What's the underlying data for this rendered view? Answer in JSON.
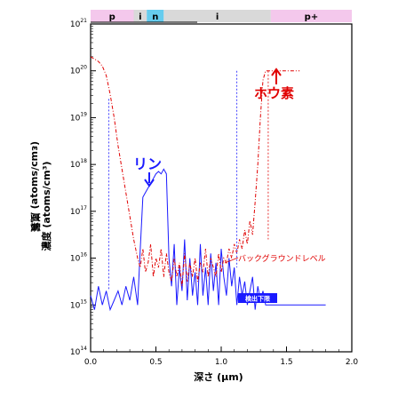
{
  "chart_data": {
    "type": "line",
    "xlabel": "深さ (μm)",
    "ylabel": "濃度 (atoms/cm³)",
    "ylabel_rotated_duplicate": "(ɛɯɔ/sɯoʇɐ) 嵐鬟",
    "x_ticks": [
      "0.0",
      "0.5",
      "1.0",
      "1.5",
      "2.0"
    ],
    "xlim": [
      0.0,
      2.0
    ],
    "y_tick_base": "10",
    "y_tick_exponents": [
      "21",
      "20",
      "19",
      "18",
      "17",
      "16",
      "15",
      "14"
    ],
    "ylim_log10": [
      14,
      21
    ],
    "region_bands": [
      {
        "label": "p",
        "from": 0.0,
        "to": 0.33,
        "color": "#f4c8ec"
      },
      {
        "label": "i",
        "from": 0.33,
        "to": 0.43,
        "color": "#d9d9d9"
      },
      {
        "label": "n",
        "from": 0.43,
        "to": 0.56,
        "color": "#66ccee"
      },
      {
        "label": "i",
        "from": 0.56,
        "to": 1.38,
        "color": "#d9d9d9"
      },
      {
        "label": "p+",
        "from": 1.38,
        "to": 2.0,
        "color": "#f4c8ec"
      }
    ],
    "series": [
      {
        "name": "リン",
        "color": "#1a1aff",
        "style": "solid",
        "x": [
          0.0,
          0.03,
          0.06,
          0.09,
          0.12,
          0.15,
          0.18,
          0.21,
          0.24,
          0.27,
          0.3,
          0.33,
          0.36,
          0.38,
          0.4,
          0.42,
          0.44,
          0.46,
          0.48,
          0.5,
          0.52,
          0.54,
          0.56,
          0.58,
          0.6,
          0.62,
          0.64,
          0.66,
          0.68,
          0.7,
          0.72,
          0.74,
          0.76,
          0.78,
          0.8,
          0.82,
          0.84,
          0.86,
          0.88,
          0.9,
          0.92,
          0.94,
          0.96,
          0.98,
          1.0,
          1.02,
          1.04,
          1.06,
          1.08,
          1.1,
          1.12,
          1.14,
          1.16,
          1.18,
          1.2,
          1.22,
          1.24,
          1.26,
          1.28,
          1.3,
          1.32,
          1.34,
          1.36,
          1.38,
          1.4,
          1.45,
          1.5,
          1.55,
          1.6,
          1.65,
          1.7,
          1.75,
          1.8
        ],
        "y": [
          15.2,
          14.9,
          15.4,
          15.0,
          15.3,
          14.9,
          15.1,
          15.3,
          15.0,
          15.4,
          15.1,
          15.6,
          15.0,
          16.2,
          17.3,
          17.4,
          17.5,
          17.6,
          17.7,
          17.8,
          17.85,
          17.8,
          17.9,
          17.8,
          16.0,
          15.4,
          16.3,
          15.0,
          15.8,
          15.3,
          16.4,
          15.1,
          16.0,
          15.2,
          15.7,
          15.0,
          16.3,
          15.2,
          15.8,
          15.0,
          16.1,
          15.3,
          15.9,
          15.0,
          16.2,
          15.6,
          15.2,
          16.0,
          15.4,
          15.8,
          15.0,
          15.6,
          15.2,
          15.5,
          15.0,
          15.3,
          15.6,
          14.9,
          15.4,
          15.1,
          15.3,
          15.0,
          15.0,
          15.0,
          15.0,
          15.0,
          15.0,
          15.0,
          15.0,
          15.0,
          15.0,
          15.0,
          15.0
        ]
      },
      {
        "name": "ホウ素",
        "color": "#e00000",
        "style": "dash-dot",
        "x": [
          0.0,
          0.03,
          0.06,
          0.09,
          0.12,
          0.15,
          0.18,
          0.21,
          0.24,
          0.27,
          0.3,
          0.33,
          0.36,
          0.38,
          0.4,
          0.42,
          0.44,
          0.46,
          0.48,
          0.5,
          0.52,
          0.54,
          0.56,
          0.58,
          0.6,
          0.62,
          0.64,
          0.66,
          0.68,
          0.7,
          0.72,
          0.74,
          0.76,
          0.78,
          0.8,
          0.82,
          0.84,
          0.86,
          0.88,
          0.9,
          0.92,
          0.94,
          0.96,
          0.98,
          1.0,
          1.02,
          1.04,
          1.06,
          1.08,
          1.1,
          1.12,
          1.14,
          1.16,
          1.18,
          1.2,
          1.22,
          1.24,
          1.26,
          1.28,
          1.3,
          1.32,
          1.34,
          1.36,
          1.38,
          1.4,
          1.45,
          1.5,
          1.55,
          1.6
        ],
        "y": [
          20.3,
          20.25,
          20.2,
          20.1,
          19.9,
          19.5,
          19.0,
          18.4,
          17.9,
          17.4,
          16.9,
          16.4,
          16.0,
          15.8,
          16.2,
          15.7,
          15.9,
          16.3,
          15.6,
          16.0,
          15.8,
          16.2,
          15.6,
          16.1,
          15.7,
          15.5,
          16.0,
          15.6,
          15.9,
          15.4,
          16.1,
          15.5,
          15.9,
          15.6,
          16.0,
          15.5,
          15.9,
          15.7,
          16.2,
          15.6,
          16.0,
          15.8,
          15.6,
          16.1,
          15.7,
          16.0,
          15.9,
          16.2,
          16.0,
          16.3,
          16.1,
          16.4,
          16.2,
          16.6,
          16.3,
          16.8,
          16.5,
          17.2,
          18.0,
          19.0,
          19.8,
          20.0,
          20.0,
          20.0,
          20.0,
          20.0,
          20.0,
          20.0,
          20.0
        ]
      }
    ],
    "annotations": {
      "phosphorus": "リン",
      "boron": "ホウ素",
      "background": "バックグラウンドレベル",
      "lod": "検出下限"
    },
    "colors": {
      "phosphorus": "#1a1aff",
      "boron": "#e00000",
      "axis": "#000000"
    },
    "grid": false
  }
}
